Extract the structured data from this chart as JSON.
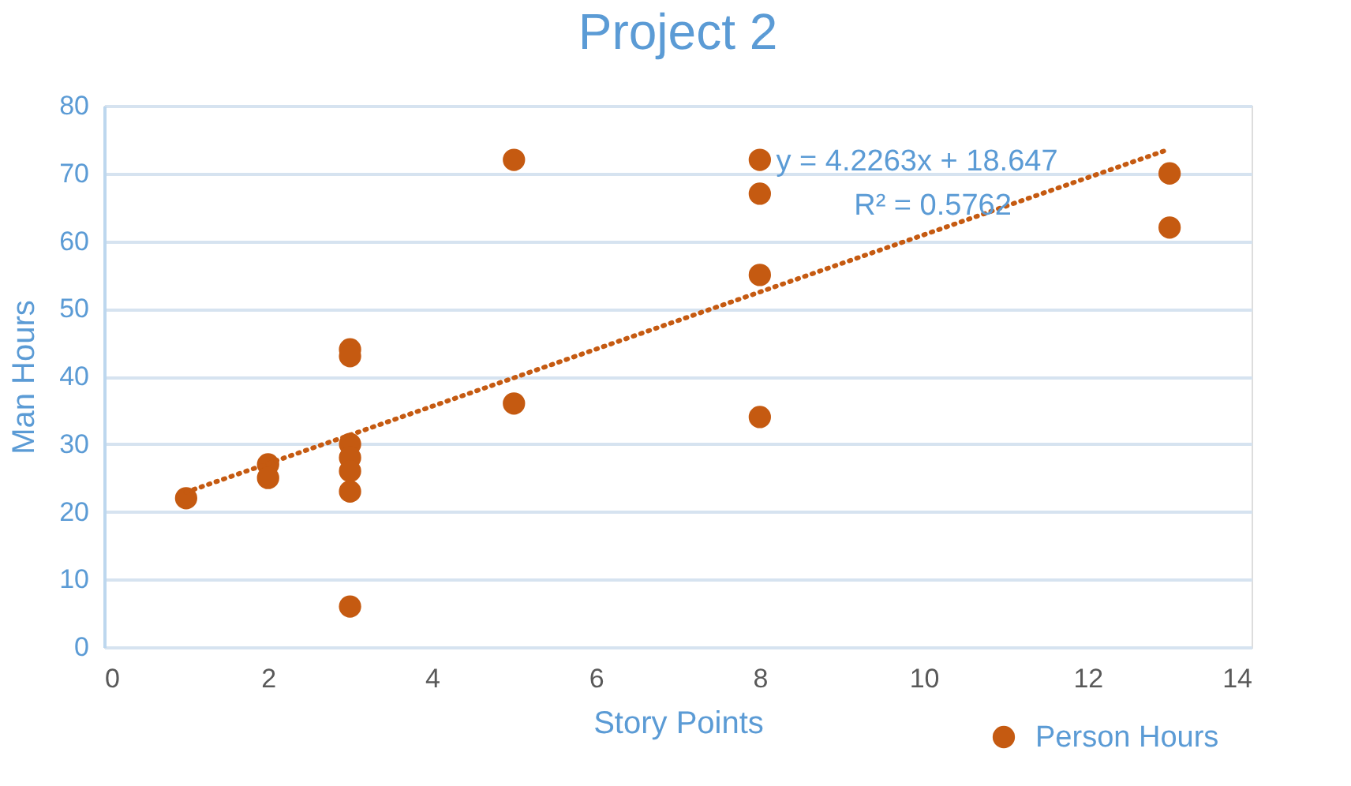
{
  "chart_data": {
    "type": "scatter",
    "title": "Project 2",
    "xlabel": "Story Points",
    "ylabel": "Man Hours",
    "series": [
      {
        "name": "Person Hours",
        "color": "#c55a11",
        "marker": "circle",
        "x": [
          1,
          2,
          2,
          3,
          3,
          3,
          3,
          3,
          3,
          3,
          5,
          5,
          8,
          8,
          8,
          8,
          13,
          13
        ],
        "values": [
          22,
          27,
          25,
          44,
          43,
          30,
          28,
          26,
          23,
          6,
          72,
          36,
          72,
          67,
          55,
          34,
          70,
          62
        ]
      },
      {
        "color": "#c55a11",
        "type": "line",
        "line_style": "dotted",
        "x": [
          1,
          13
        ],
        "values": [
          22.9,
          73.6
        ]
      }
    ],
    "annotations": [
      "y = 4.2263x + 18.647",
      "R² = 0.5762"
    ],
    "xlim": [
      0,
      14
    ],
    "xticks": [
      0,
      2,
      4,
      6,
      8,
      10,
      12,
      14
    ],
    "ylim": [
      0,
      80
    ],
    "yticks": [
      0,
      10,
      20,
      30,
      40,
      50,
      60,
      70,
      80
    ],
    "grid": "y",
    "legend": "bottom right"
  }
}
